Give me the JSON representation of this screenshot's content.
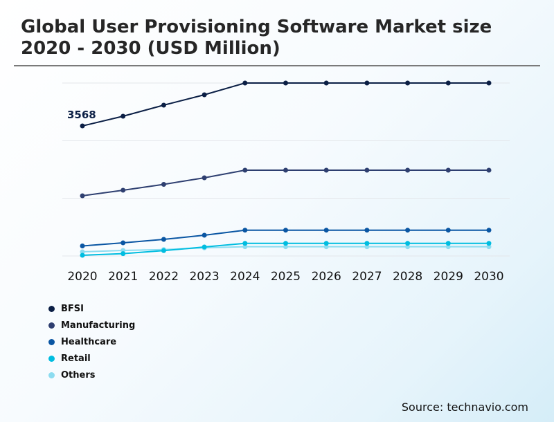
{
  "title": "Global User Provisioning Software Market size 2020 - 2030 (USD Million)",
  "source": "Source: technavio.com",
  "chart_data": {
    "type": "line",
    "title": "Global User Provisioning Software Market size 2020 - 2030 (USD Million)",
    "xlabel": "",
    "ylabel": "",
    "categories": [
      "2020",
      "2021",
      "2022",
      "2023",
      "2024",
      "2025",
      "2026",
      "2027",
      "2028",
      "2029",
      "2030"
    ],
    "ylim": [
      0,
      4745
    ],
    "grid": true,
    "legend_position": "bottom-left",
    "data_labels": [
      {
        "series": "BFSI",
        "category": "2020",
        "text": "3568"
      }
    ],
    "series": [
      {
        "name": "BFSI",
        "color": "#0b1f45",
        "values": [
          3568,
          3834,
          4138,
          4422,
          4745,
          4745,
          4745,
          4745,
          4745,
          4745,
          4745
        ]
      },
      {
        "name": "Manufacturing",
        "color": "#2e3f70",
        "values": [
          1651,
          1804,
          1965,
          2145,
          2353,
          2353,
          2353,
          2353,
          2353,
          2353,
          2353
        ]
      },
      {
        "name": "Healthcare",
        "color": "#0a56a3",
        "values": [
          275,
          361,
          455,
          569,
          708,
          708,
          708,
          708,
          708,
          708,
          708
        ]
      },
      {
        "name": "Retail",
        "color": "#00bde0",
        "values": [
          19,
          63,
          146,
          247,
          347,
          347,
          347,
          347,
          347,
          347,
          347
        ]
      },
      {
        "name": "Others",
        "color": "#8cdcf0",
        "values": [
          114,
          152,
          176,
          222,
          253,
          253,
          253,
          253,
          253,
          253,
          253
        ]
      }
    ]
  }
}
